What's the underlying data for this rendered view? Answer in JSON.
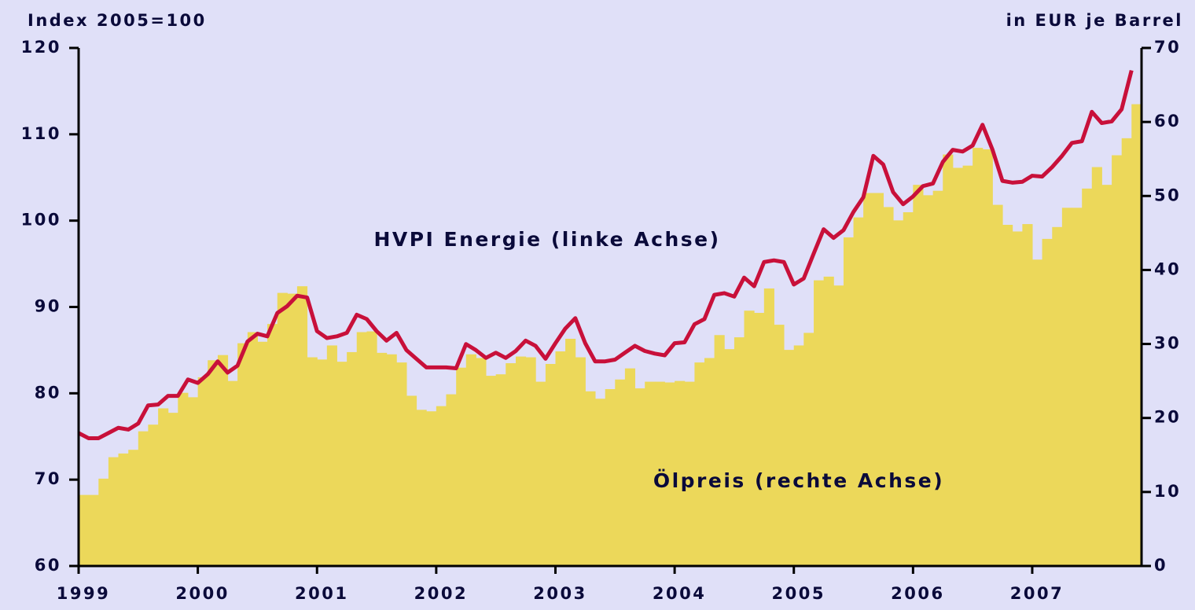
{
  "chart_data": {
    "type": "bar",
    "y_label": "Index 2005=100",
    "y2_label": "in EUR je Barrel",
    "annotations": [
      "HVPI Energie (linke Achse)",
      "Ölpreis (rechte Achse)"
    ],
    "x": [
      1999,
      1999.083,
      1999.167,
      1999.25,
      1999.333,
      1999.417,
      1999.5,
      1999.583,
      1999.667,
      1999.75,
      1999.833,
      1999.917,
      2000,
      2000.083,
      2000.167,
      2000.25,
      2000.333,
      2000.417,
      2000.5,
      2000.583,
      2000.667,
      2000.75,
      2000.833,
      2000.917,
      2001,
      2001.083,
      2001.167,
      2001.25,
      2001.333,
      2001.417,
      2001.5,
      2001.583,
      2001.667,
      2001.75,
      2001.833,
      2001.917,
      2002,
      2002.083,
      2002.167,
      2002.25,
      2002.333,
      2002.417,
      2002.5,
      2002.583,
      2002.667,
      2002.75,
      2002.833,
      2002.917,
      2003,
      2003.083,
      2003.167,
      2003.25,
      2003.333,
      2003.417,
      2003.5,
      2003.583,
      2003.667,
      2003.75,
      2003.833,
      2003.917,
      2004,
      2004.083,
      2004.167,
      2004.25,
      2004.333,
      2004.417,
      2004.5,
      2004.583,
      2004.667,
      2004.75,
      2004.833,
      2004.917,
      2005,
      2005.083,
      2005.167,
      2005.25,
      2005.333,
      2005.417,
      2005.5,
      2005.583,
      2005.667,
      2005.75,
      2005.833,
      2005.917,
      2006,
      2006.083,
      2006.167,
      2006.25,
      2006.333,
      2006.417,
      2006.5,
      2006.583,
      2006.667,
      2006.75,
      2006.833,
      2006.917,
      2007,
      2007.083,
      2007.167,
      2007.25,
      2007.333,
      2007.417,
      2007.5,
      2007.583,
      2007.667,
      2007.75,
      2007.833
    ],
    "series": [
      {
        "name": "Ölpreis",
        "type": "bar",
        "axis": "y2",
        "color": "#ecd85a",
        "values": [
          9.6,
          9.6,
          11.8,
          14.7,
          15.2,
          15.7,
          18.2,
          19.1,
          21.3,
          20.7,
          23.4,
          22.8,
          25.5,
          27.8,
          28.5,
          25.0,
          30.1,
          31.6,
          30.3,
          32.7,
          36.9,
          36.8,
          37.8,
          28.2,
          27.9,
          29.8,
          27.6,
          28.9,
          31.6,
          31.7,
          28.8,
          28.6,
          27.5,
          23.0,
          21.1,
          20.9,
          21.6,
          23.2,
          26.8,
          28.6,
          28.1,
          25.7,
          25.9,
          27.4,
          28.3,
          28.2,
          24.9,
          27.3,
          29.0,
          30.7,
          28.2,
          23.6,
          22.6,
          23.9,
          25.2,
          26.7,
          24.0,
          24.9,
          24.9,
          24.8,
          25.0,
          24.9,
          27.5,
          28.1,
          31.2,
          29.3,
          30.9,
          34.5,
          34.2,
          37.5,
          32.6,
          29.2,
          29.8,
          31.5,
          38.6,
          39.1,
          37.9,
          44.4,
          47.1,
          50.4,
          50.4,
          48.5,
          46.7,
          47.8,
          51.5,
          50.1,
          50.7,
          55.6,
          53.8,
          54.1,
          56.5,
          56.3,
          48.8,
          46.1,
          45.2,
          46.2,
          41.4,
          44.2,
          45.8,
          48.4,
          48.4,
          51.0,
          53.9,
          51.5,
          55.5,
          57.8,
          62.4
        ]
      },
      {
        "name": "HVPI Energie",
        "type": "line",
        "axis": "y",
        "color": "#c8103a",
        "values": [
          75.4,
          74.8,
          74.8,
          75.4,
          76.0,
          75.8,
          76.5,
          78.6,
          78.7,
          79.7,
          79.7,
          81.6,
          81.2,
          82.2,
          83.7,
          82.4,
          83.2,
          86.0,
          86.9,
          86.6,
          89.3,
          90.1,
          91.3,
          91.1,
          87.2,
          86.4,
          86.6,
          87.0,
          89.1,
          88.6,
          87.2,
          86.1,
          87.0,
          85.0,
          84.0,
          83.0,
          83.0,
          83.0,
          82.9,
          85.7,
          85.0,
          84.1,
          84.7,
          84.1,
          84.9,
          86.1,
          85.5,
          84.0,
          85.8,
          87.5,
          88.7,
          85.8,
          83.7,
          83.7,
          83.9,
          84.7,
          85.5,
          84.9,
          84.6,
          84.4,
          85.8,
          85.9,
          88.0,
          88.6,
          91.4,
          91.6,
          91.2,
          93.4,
          92.4,
          95.2,
          95.4,
          95.2,
          92.6,
          93.3,
          96.2,
          99.0,
          98.0,
          98.9,
          101.0,
          102.7,
          107.5,
          106.5,
          103.3,
          101.9,
          102.8,
          104.0,
          104.3,
          106.8,
          108.2,
          108.0,
          108.7,
          111.1,
          108.2,
          104.6,
          104.4,
          104.5,
          105.2,
          105.1,
          106.2,
          107.5,
          109.0,
          109.2,
          112.6,
          111.3,
          111.5,
          112.9,
          117.4
        ]
      }
    ],
    "xlim": [
      1999,
      2007.917
    ],
    "xticks": [
      1999,
      2000,
      2001,
      2002,
      2003,
      2004,
      2005,
      2006,
      2007
    ],
    "ylim": [
      60,
      120
    ],
    "yticks": [
      60,
      70,
      80,
      90,
      100,
      110,
      120
    ],
    "y2lim": [
      0,
      70
    ],
    "y2ticks": [
      0,
      10,
      20,
      30,
      40,
      50,
      60,
      70
    ],
    "grid": false
  }
}
